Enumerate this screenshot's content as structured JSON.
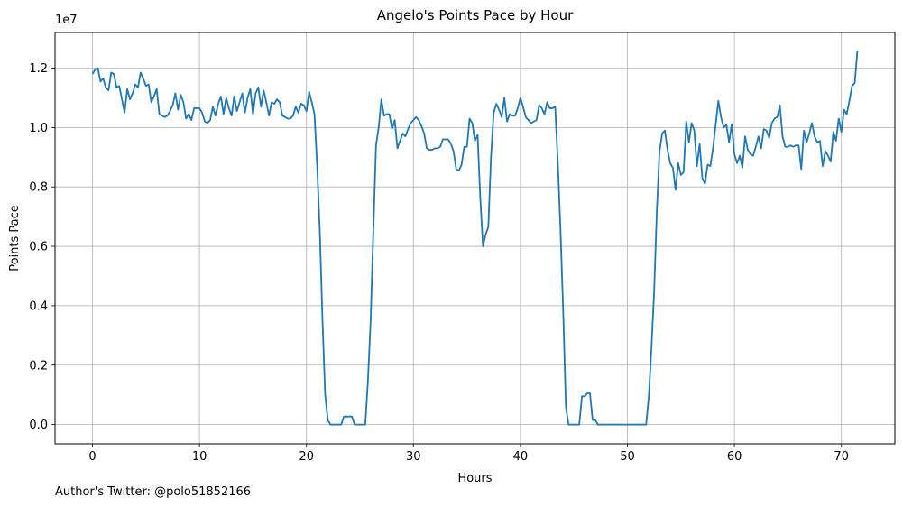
{
  "chart_data": {
    "type": "line",
    "title": "Angelo's Points Pace by Hour",
    "xlabel": "Hours",
    "ylabel": "Points Pace",
    "y_offset_label": "1e7",
    "xlim": [
      -3.5,
      75
    ],
    "ylim": [
      -650000,
      13200000
    ],
    "x_ticks": [
      0,
      10,
      20,
      30,
      40,
      50,
      60,
      70
    ],
    "y_ticks": [
      0,
      2000000,
      4000000,
      6000000,
      8000000,
      10000000,
      12000000
    ],
    "y_tick_labels": [
      "0.0",
      "0.2",
      "0.4",
      "0.6",
      "0.8",
      "1.0",
      "1.2"
    ],
    "grid": true,
    "line_color": "#1f77b4",
    "series": [
      {
        "x": [
          0.0,
          0.25,
          0.5,
          0.75,
          1.0,
          1.25,
          1.5,
          1.75,
          2.0,
          2.25,
          2.5,
          2.75,
          3.0,
          3.25,
          3.5,
          3.75,
          4.0,
          4.25,
          4.5,
          4.75,
          5.0,
          5.25,
          5.5,
          5.75,
          6.0,
          6.25,
          6.5,
          6.75,
          7.0,
          7.25,
          7.5,
          7.75,
          8.0,
          8.25,
          8.5,
          8.75,
          9.0,
          9.25,
          9.5,
          9.75,
          10.0,
          10.25,
          10.5,
          10.75,
          11.0,
          11.25,
          11.5,
          11.75,
          12.0,
          12.25,
          12.5,
          12.75,
          13.0,
          13.25,
          13.5,
          13.75,
          14.0,
          14.25,
          14.5,
          14.75,
          15.0,
          15.25,
          15.5,
          15.75,
          16.0,
          16.25,
          16.5,
          16.75,
          17.0,
          17.25,
          17.5,
          17.75,
          18.0,
          18.25,
          18.5,
          18.75,
          19.0,
          19.25,
          19.5,
          19.75,
          20.0,
          20.25,
          20.5,
          20.75,
          21.0,
          21.25,
          21.5,
          21.75,
          22.0,
          22.25,
          22.5,
          22.75,
          23.0,
          23.25,
          23.5,
          23.75,
          24.0,
          24.25,
          24.5,
          24.75,
          25.0,
          25.25,
          25.5,
          25.75,
          26.0,
          26.25,
          26.5,
          26.75,
          27.0,
          27.25,
          27.5,
          27.75,
          28.0,
          28.25,
          28.5,
          28.75,
          29.0,
          29.25,
          29.5,
          29.75,
          30.0,
          30.25,
          30.5,
          30.75,
          31.0,
          31.25,
          31.5,
          31.75,
          32.0,
          32.25,
          32.5,
          32.75,
          33.0,
          33.25,
          33.5,
          33.75,
          34.0,
          34.25,
          34.5,
          34.75,
          35.0,
          35.25,
          35.5,
          35.75,
          36.0,
          36.25,
          36.5,
          36.75,
          37.0,
          37.25,
          37.5,
          37.75,
          38.0,
          38.25,
          38.5,
          38.75,
          39.0,
          39.25,
          39.5,
          39.75,
          40.0,
          40.25,
          40.5,
          40.75,
          41.0,
          41.25,
          41.5,
          41.75,
          42.0,
          42.25,
          42.5,
          42.75,
          43.0,
          43.25,
          43.5,
          43.75,
          44.0,
          44.25,
          44.5,
          44.75,
          45.0,
          45.25,
          45.5,
          45.75,
          46.0,
          46.25,
          46.5,
          46.75,
          47.0,
          47.25,
          47.5,
          47.75,
          48.0,
          48.25,
          48.5,
          48.75,
          49.0,
          49.25,
          49.5,
          49.75,
          50.0,
          50.25,
          50.5,
          50.75,
          51.0,
          51.25,
          51.5,
          51.75,
          52.0,
          52.25,
          52.5,
          52.75,
          53.0,
          53.25,
          53.5,
          53.75,
          54.0,
          54.25,
          54.5,
          54.75,
          55.0,
          55.25,
          55.5,
          55.75,
          56.0,
          56.25,
          56.5,
          56.75,
          57.0,
          57.25,
          57.5,
          57.75,
          58.0,
          58.25,
          58.5,
          58.75,
          59.0,
          59.25,
          59.5,
          59.75,
          60.0,
          60.25,
          60.5,
          60.75,
          61.0,
          61.25,
          61.5,
          61.75,
          62.0,
          62.25,
          62.5,
          62.75,
          63.0,
          63.25,
          63.5,
          63.75,
          64.0,
          64.25,
          64.5,
          64.75,
          65.0,
          65.25,
          65.5,
          65.75,
          66.0,
          66.25,
          66.5,
          66.75,
          67.0,
          67.25,
          67.5,
          67.75,
          68.0,
          68.25,
          68.5,
          68.75,
          69.0,
          69.25,
          69.5,
          69.75,
          70.0,
          70.25,
          70.5,
          70.75,
          71.0,
          71.25,
          71.5
        ],
        "y": [
          11800000,
          11950000,
          12000000,
          11550000,
          11650000,
          11350000,
          11250000,
          11850000,
          11800000,
          11350000,
          11400000,
          10950000,
          10500000,
          11300000,
          10950000,
          11150000,
          11450000,
          11350000,
          11850000,
          11650000,
          11400000,
          11450000,
          10850000,
          11050000,
          11300000,
          10450000,
          10400000,
          10350000,
          10400000,
          10550000,
          10750000,
          11150000,
          10600000,
          11100000,
          10850000,
          10300000,
          10450000,
          10250000,
          10650000,
          10650000,
          10650000,
          10500000,
          10200000,
          10150000,
          10250000,
          10700000,
          10400000,
          10800000,
          11050000,
          10450000,
          11000000,
          10650000,
          10400000,
          11050000,
          10550000,
          10850000,
          11150000,
          10500000,
          11000000,
          11300000,
          10450000,
          11150000,
          11350000,
          10700000,
          11250000,
          10850000,
          10400000,
          10850000,
          10800000,
          10950000,
          10850000,
          10400000,
          10350000,
          10300000,
          10300000,
          10400000,
          10700000,
          10500000,
          10800000,
          10750000,
          10550000,
          11200000,
          10850000,
          10450000,
          8700000,
          6500000,
          3500000,
          1000000,
          150000,
          0,
          0,
          0,
          0,
          0,
          270000,
          270000,
          270000,
          270000,
          0,
          0,
          0,
          0,
          0,
          1500000,
          3500000,
          6500000,
          9400000,
          10000000,
          10950000,
          10400000,
          10450000,
          10450000,
          9950000,
          10250000,
          9300000,
          9550000,
          9800000,
          9700000,
          9950000,
          10150000,
          10250000,
          10350000,
          10250000,
          10050000,
          9800000,
          9300000,
          9250000,
          9250000,
          9300000,
          9300000,
          9350000,
          9600000,
          9600000,
          9600000,
          9450000,
          9200000,
          8600000,
          8550000,
          8750000,
          9350000,
          9350000,
          10300000,
          10150000,
          9550000,
          9750000,
          7600000,
          6000000,
          6400000,
          6650000,
          9000000,
          10500000,
          10800000,
          10600000,
          10350000,
          11000000,
          10200000,
          10450000,
          10400000,
          10400000,
          10650000,
          11000000,
          10700000,
          10350000,
          10250000,
          10150000,
          10200000,
          10250000,
          10750000,
          10650000,
          10450000,
          10850000,
          10650000,
          10650000,
          10700000,
          8800000,
          6500000,
          3800000,
          600000,
          0,
          0,
          0,
          0,
          0,
          950000,
          950000,
          1050000,
          1050000,
          150000,
          150000,
          0,
          0,
          0,
          0,
          0,
          0,
          0,
          0,
          0,
          0,
          0,
          0,
          0,
          0,
          0,
          0,
          0,
          0,
          0,
          950000,
          2600000,
          4500000,
          7200000,
          9200000,
          9800000,
          9900000,
          9250000,
          8800000,
          8650000,
          7900000,
          8800000,
          8400000,
          8500000,
          10200000,
          9500000,
          10150000,
          9900000,
          8700000,
          9450000,
          8300000,
          8100000,
          8750000,
          8700000,
          9300000,
          10100000,
          10900000,
          10350000,
          10000000,
          10100000,
          9500000,
          10100000,
          9100000,
          8800000,
          9050000,
          8650000,
          9700000,
          9250000,
          9100000,
          9050000,
          9350000,
          9700000,
          9300000,
          9950000,
          9900000,
          9650000,
          10150000,
          10300000,
          10350000,
          10750000,
          9700000,
          9350000,
          9350000,
          9400000,
          9350000,
          9400000,
          9400000,
          8600000,
          9900000,
          9500000,
          9800000,
          10150000,
          9700000,
          9500000,
          9550000,
          8700000,
          9200000,
          9050000,
          8850000,
          9850000,
          9550000,
          10300000,
          9850000,
          10600000,
          10450000,
          10900000,
          11400000,
          11500000,
          12600000
        ]
      }
    ],
    "footer_text": "Author's Twitter: @polo51852166"
  }
}
